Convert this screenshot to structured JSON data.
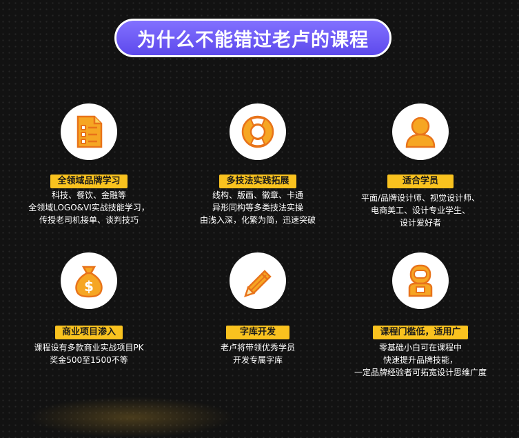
{
  "title": "为什么不能错过老卢的课程",
  "colors": {
    "accent_purple": "#6a57f5",
    "label_yellow": "#f9c21f",
    "icon_orange": "#f39a1b",
    "background": "#121212"
  },
  "features": [
    {
      "icon": "document-checklist-icon",
      "label": "全领域品牌学习",
      "lines": [
        "科技、餐饮、金融等",
        "全领域LOGO&VI实战技能学习，",
        "传授老司机接单、谈判技巧"
      ]
    },
    {
      "icon": "lifebuoy-icon",
      "label": "多技法实践拓展",
      "lines": [
        "线构、版画、徽章、卡通",
        "异形同构等多类技法实操",
        "由浅入深，化繁为简，迅速突破"
      ]
    },
    {
      "icon": "person-icon",
      "label": "适合学员",
      "lines": [
        "平面/品牌设计师、视觉设计师、",
        "电商美工、设计专业学生、",
        "设计爱好者"
      ]
    },
    {
      "icon": "money-bag-icon",
      "label": "商业项目渗入",
      "lines": [
        "课程设有多款商业实战项目PK",
        "奖金500至1500不等"
      ]
    },
    {
      "icon": "pencil-icon",
      "label": "字库开发",
      "lines": [
        "老卢将带领优秀学员",
        "开发专属字库"
      ]
    },
    {
      "icon": "astronaut-icon",
      "label": "课程门槛低，适用广",
      "lines": [
        "零基础小白可在课程中",
        "快速提升品牌技能，",
        "一定品牌经验者可拓宽设计思维广度"
      ]
    }
  ]
}
